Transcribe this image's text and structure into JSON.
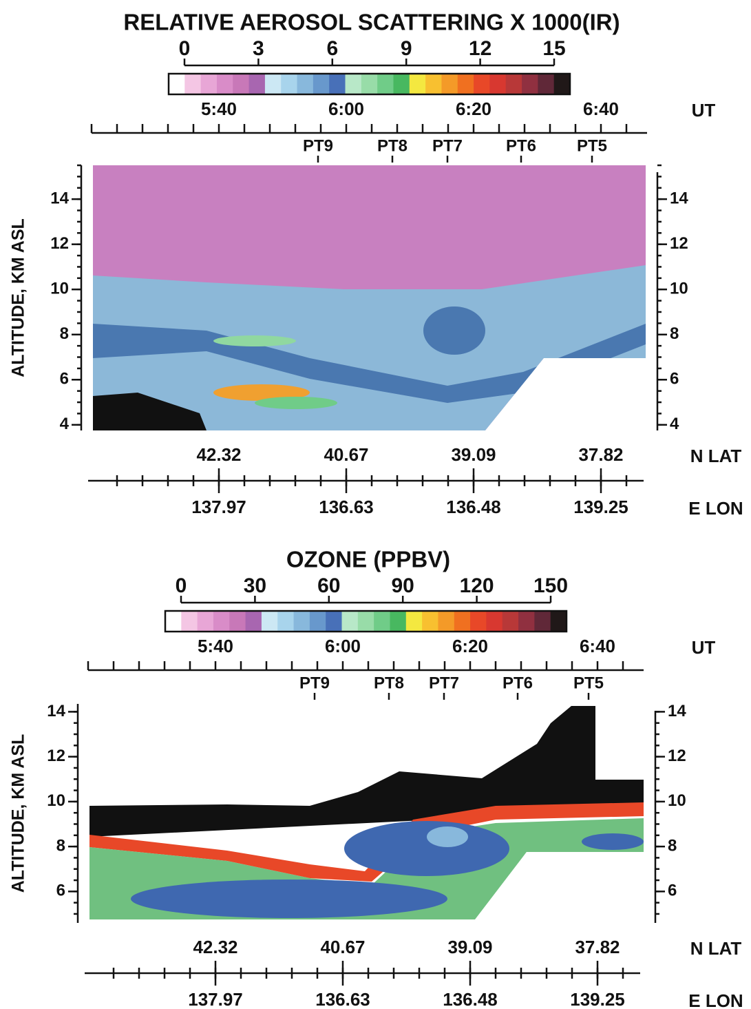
{
  "chart_data": [
    {
      "type": "heatmap",
      "title": "RELATIVE AEROSOL SCATTERING X 1000(IR)",
      "colorbar": {
        "lim": [
          0,
          15
        ],
        "ticks": [
          0,
          3,
          6,
          9,
          12,
          15
        ],
        "colors": [
          "#ffffff",
          "#f4c6e4",
          "#e8a6d6",
          "#d98cc8",
          "#c878b8",
          "#a866b0",
          "#cce8f4",
          "#a8d4ec",
          "#88b8dc",
          "#6898cc",
          "#4870b8",
          "#b8e8c8",
          "#98dca8",
          "#70cc88",
          "#48b860",
          "#f4e840",
          "#f8c030",
          "#f49a28",
          "#f07020",
          "#e84828",
          "#d83830",
          "#b83838",
          "#903040",
          "#602838",
          "#201818"
        ]
      },
      "ut_label": "UT",
      "ut_ticks": [
        "5:40",
        "6:00",
        "6:20",
        "6:40"
      ],
      "points": [
        "PT9",
        "PT8",
        "PT7",
        "PT6",
        "PT5"
      ],
      "lat_label": "N LAT",
      "lat_ticks": [
        42.32,
        40.67,
        39.09,
        37.82
      ],
      "lon_label": "E LON",
      "lon_ticks": [
        137.97,
        136.63,
        136.48,
        139.25
      ],
      "ylabel": "ALTITUDE, KM ASL",
      "ylim": [
        3.75,
        15.5
      ],
      "yticks": [
        4,
        6,
        8,
        10,
        12,
        14
      ]
    },
    {
      "type": "heatmap",
      "title": "OZONE (PPBV)",
      "colorbar": {
        "lim": [
          0,
          150
        ],
        "ticks": [
          0,
          30,
          60,
          90,
          120,
          150
        ],
        "colors": [
          "#ffffff",
          "#f4c6e4",
          "#e8a6d6",
          "#d98cc8",
          "#c878b8",
          "#a866b0",
          "#cce8f4",
          "#a8d4ec",
          "#88b8dc",
          "#6898cc",
          "#4870b8",
          "#b8e8c8",
          "#98dca8",
          "#70cc88",
          "#48b860",
          "#f4e840",
          "#f8c030",
          "#f49a28",
          "#f07020",
          "#e84828",
          "#d83830",
          "#b83838",
          "#903040",
          "#602838",
          "#201818"
        ]
      },
      "ut_label": "UT",
      "ut_ticks": [
        "5:40",
        "6:00",
        "6:20",
        "6:40"
      ],
      "points": [
        "PT9",
        "PT8",
        "PT7",
        "PT6",
        "PT5"
      ],
      "lat_label": "N LAT",
      "lat_ticks": [
        42.32,
        40.67,
        39.09,
        37.82
      ],
      "lon_label": "E LON",
      "lon_ticks": [
        137.97,
        136.63,
        136.48,
        139.25
      ],
      "ylabel": "ALTITUDE, KM ASL",
      "ylim": [
        4.6,
        14.35
      ],
      "yticks": [
        6,
        8,
        10,
        12,
        14
      ]
    }
  ]
}
